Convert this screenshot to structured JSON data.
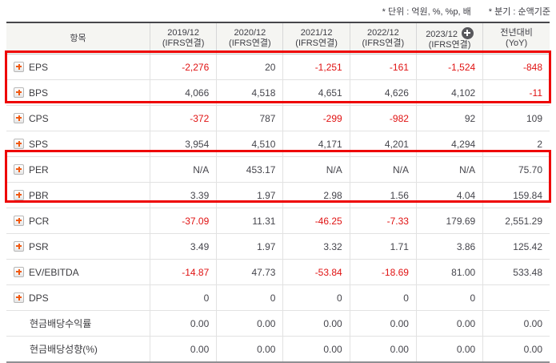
{
  "captions": {
    "unit": "* 단위 : 억원, %, %p, 배",
    "basis": "* 분기 : 순액기준"
  },
  "table": {
    "item_header": "항목",
    "columns": [
      {
        "line1": "2019/12",
        "line2": "(IFRS연결)"
      },
      {
        "line1": "2020/12",
        "line2": "(IFRS연결)"
      },
      {
        "line1": "2021/12",
        "line2": "(IFRS연결)"
      },
      {
        "line1": "2022/12",
        "line2": "(IFRS연결)"
      },
      {
        "line1": "2023/12",
        "line2": "(IFRS연결)"
      },
      {
        "line1": "전년대비",
        "line2": "(YoY)"
      }
    ],
    "rows": [
      {
        "label": "EPS",
        "expandable": true,
        "highlighted": true,
        "values": [
          "-2,276",
          "20",
          "-1,251",
          "-161",
          "-1,524",
          "-848"
        ]
      },
      {
        "label": "BPS",
        "expandable": true,
        "highlighted": true,
        "values": [
          "4,066",
          "4,518",
          "4,651",
          "4,626",
          "4,102",
          "-11"
        ]
      },
      {
        "label": "CPS",
        "expandable": true,
        "highlighted": false,
        "values": [
          "-372",
          "787",
          "-299",
          "-982",
          "92",
          "109"
        ]
      },
      {
        "label": "SPS",
        "expandable": true,
        "highlighted": false,
        "values": [
          "3,954",
          "4,510",
          "4,171",
          "4,201",
          "4,294",
          "2"
        ]
      },
      {
        "label": "PER",
        "expandable": true,
        "highlighted": true,
        "values": [
          "N/A",
          "453.17",
          "N/A",
          "N/A",
          "N/A",
          "75.70"
        ]
      },
      {
        "label": "PBR",
        "expandable": true,
        "highlighted": true,
        "values": [
          "3.39",
          "1.97",
          "2.98",
          "1.56",
          "4.04",
          "159.84"
        ]
      },
      {
        "label": "PCR",
        "expandable": true,
        "highlighted": false,
        "values": [
          "-37.09",
          "11.31",
          "-46.25",
          "-7.33",
          "179.69",
          "2,551.29"
        ]
      },
      {
        "label": "PSR",
        "expandable": true,
        "highlighted": false,
        "values": [
          "3.49",
          "1.97",
          "3.32",
          "1.71",
          "3.86",
          "125.42"
        ]
      },
      {
        "label": "EV/EBITDA",
        "expandable": true,
        "highlighted": false,
        "values": [
          "-14.87",
          "47.73",
          "-53.84",
          "-18.69",
          "81.00",
          "533.48"
        ]
      },
      {
        "label": "DPS",
        "expandable": true,
        "highlighted": false,
        "values": [
          "0",
          "0",
          "0",
          "0",
          "0",
          ""
        ]
      },
      {
        "label": "현금배당수익률",
        "expandable": false,
        "highlighted": false,
        "values": [
          "0.00",
          "0.00",
          "0.00",
          "0.00",
          "0.00",
          "0.00"
        ]
      },
      {
        "label": "현금배당성향(%)",
        "expandable": false,
        "highlighted": false,
        "values": [
          "0.00",
          "0.00",
          "0.00",
          "0.00",
          "0.00",
          "0.00"
        ]
      }
    ]
  },
  "colors": {
    "negative_value": "#e01212",
    "highlight_border": "#ee0202",
    "expand_plus": "#f05a14",
    "header_background": "#f5f5f2",
    "value_text": "#45454c"
  },
  "icons": {
    "expand_icon": "plus-square",
    "add_column_icon": "plus-circle"
  }
}
